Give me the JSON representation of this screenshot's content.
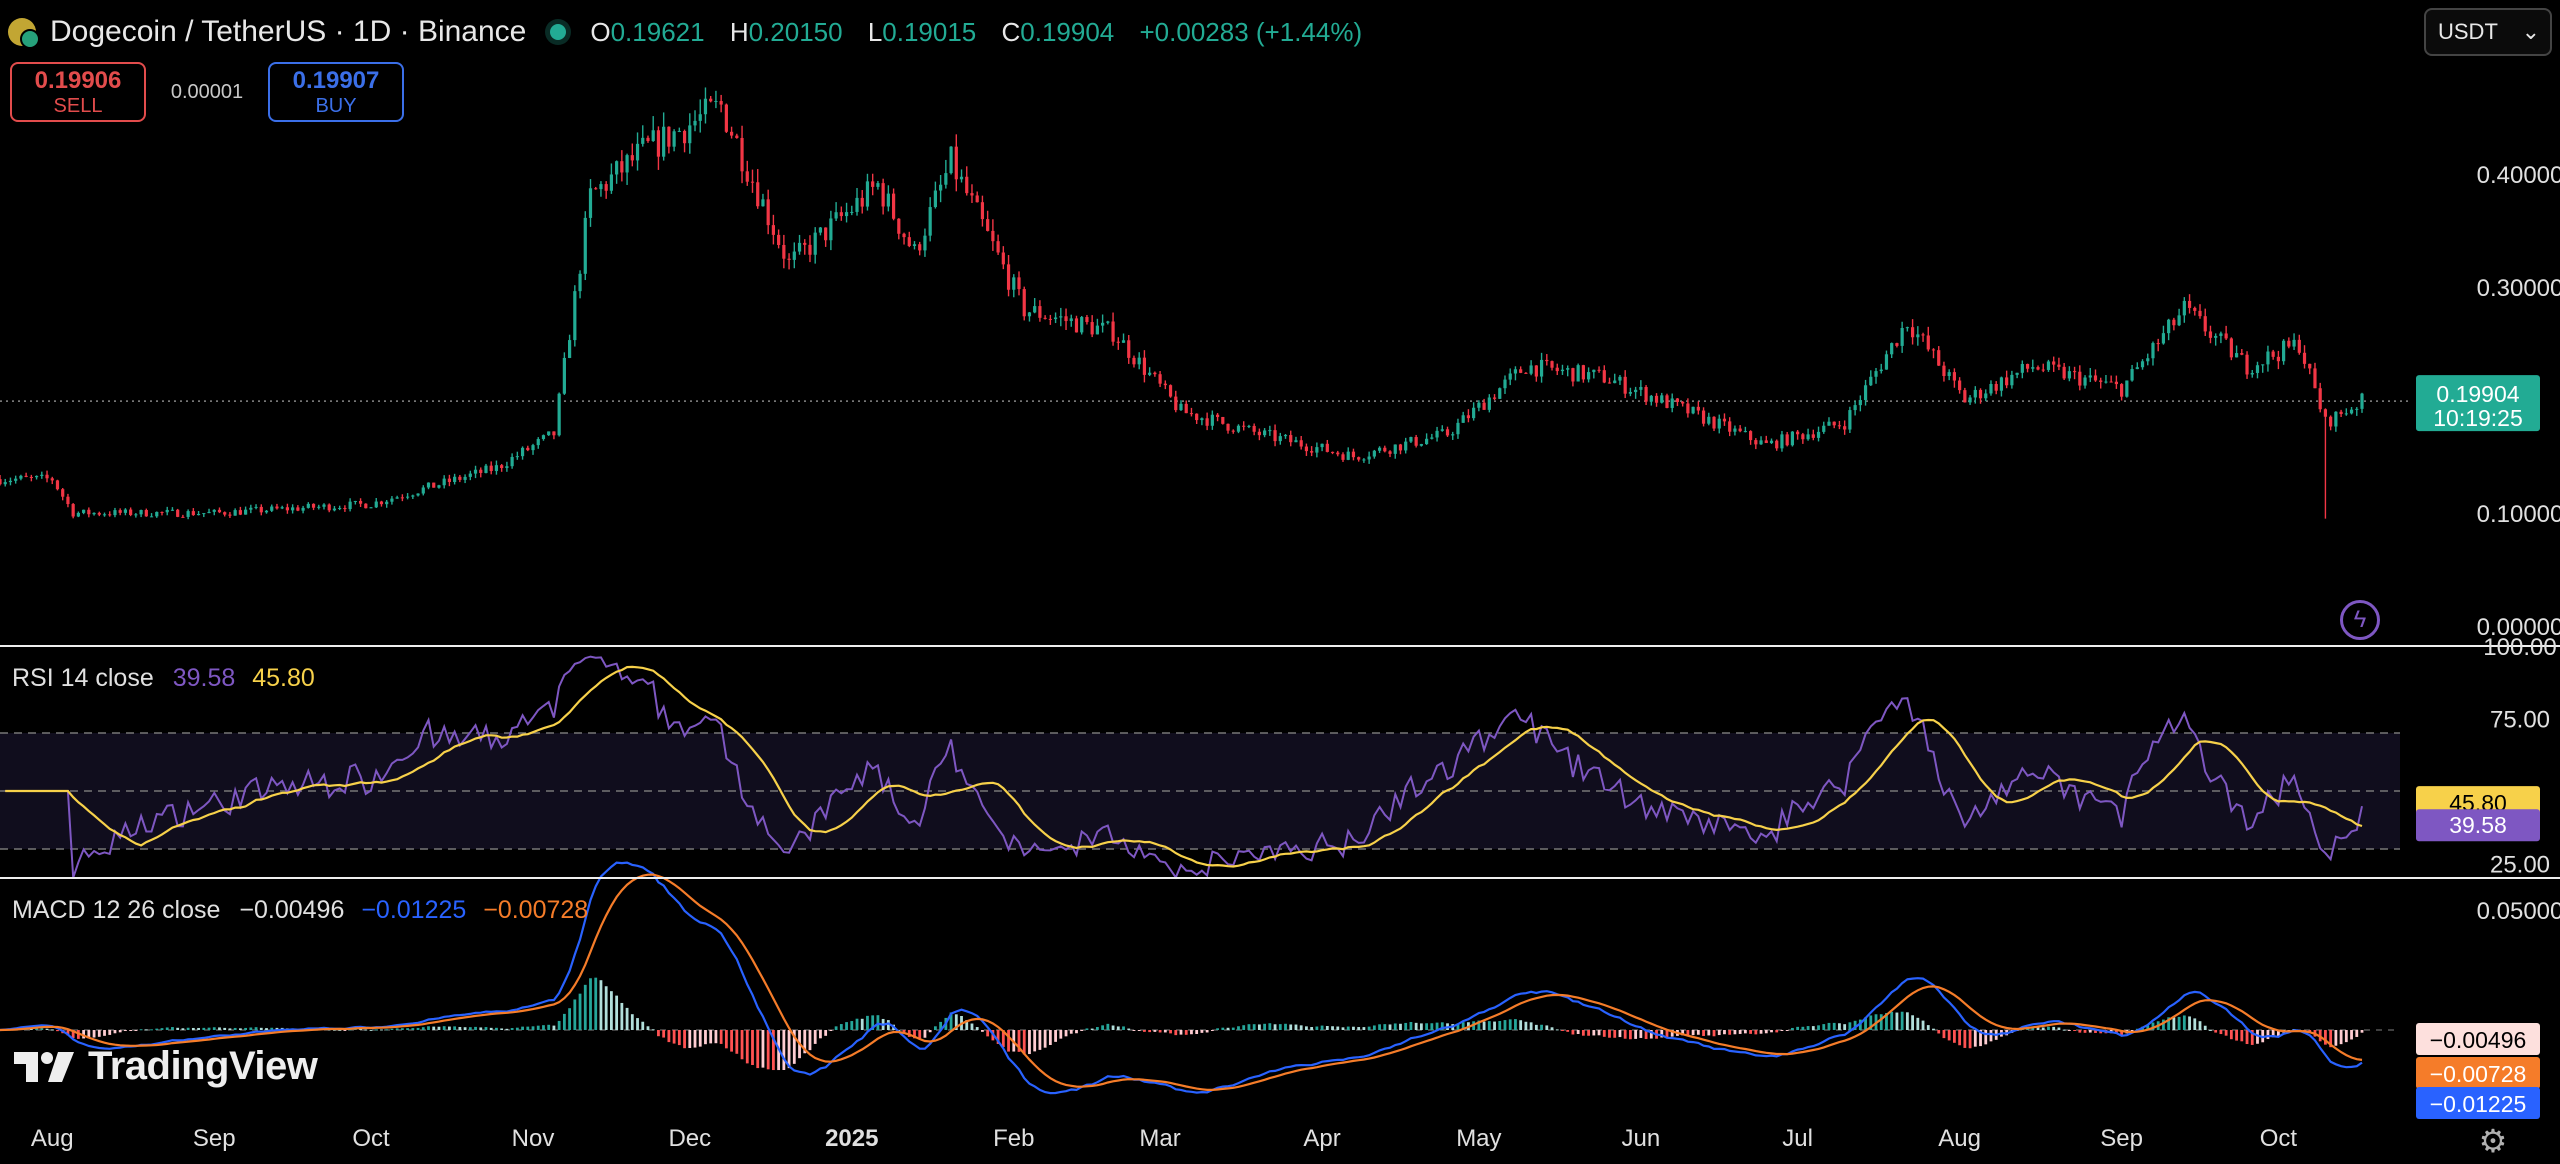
{
  "header": {
    "symbol": "Dogecoin / TetherUS · 1D · Binance",
    "open_label": "O",
    "open": "0.19621",
    "high_label": "H",
    "high": "0.20150",
    "low_label": "L",
    "low": "0.19015",
    "close_label": "C",
    "close": "0.19904",
    "change": "+0.00283 (+1.44%)"
  },
  "trade": {
    "sell_price": "0.19906",
    "sell_label": "SELL",
    "spread": "0.00001",
    "buy_price": "0.19907",
    "buy_label": "BUY"
  },
  "currency": {
    "label": "USDT",
    "chevron_icon": "chevron-down-icon"
  },
  "rsi_legend": {
    "name": "RSI 14 close",
    "rsi": "39.58",
    "ma": "45.80"
  },
  "macd_legend": {
    "name": "MACD 12 26 close",
    "hist": "−0.00496",
    "macd": "−0.01225",
    "signal": "−0.00728"
  },
  "brand": {
    "name": "TradingView",
    "logo_icon": "tradingview-logo-icon"
  },
  "icons": {
    "bolt": "lightning-bolt-icon",
    "settings": "gear-icon"
  },
  "colors": {
    "up": "#22ab94",
    "down": "#f23645",
    "rsi": "#7e57c2",
    "rsi_ma": "#f7d14a",
    "macd": "#2962ff",
    "signal": "#f57c29",
    "price_tag": "#22ab94"
  },
  "chart_data": [
    {
      "type": "candlestick",
      "title": "Dogecoin / TetherUS · 1D · Binance",
      "x_labels": [
        "Aug",
        "Sep",
        "Oct",
        "Nov",
        "Dec",
        "2025",
        "Feb",
        "Mar",
        "Apr",
        "May",
        "Jun",
        "Jul",
        "Aug",
        "Sep",
        "Oct"
      ],
      "y_ticks": [
        "0.00000",
        "0.10000",
        "0.30000",
        "0.40000"
      ],
      "y_tick_values": [
        0.0,
        0.1,
        0.3,
        0.4
      ],
      "ylim": [
        0.0,
        0.5
      ],
      "last_price": "0.19904",
      "countdown": "10:19:25",
      "trend_points": [
        {
          "date": "2024-08-01",
          "close": 0.13
        },
        {
          "date": "2024-08-05",
          "close": 0.1
        },
        {
          "date": "2024-09-01",
          "close": 0.1
        },
        {
          "date": "2024-10-01",
          "close": 0.108
        },
        {
          "date": "2024-10-25",
          "close": 0.14
        },
        {
          "date": "2024-11-05",
          "close": 0.17
        },
        {
          "date": "2024-11-12",
          "close": 0.38
        },
        {
          "date": "2024-11-22",
          "close": 0.42
        },
        {
          "date": "2024-12-07",
          "close": 0.46
        },
        {
          "date": "2024-12-20",
          "close": 0.32
        },
        {
          "date": "2025-01-06",
          "close": 0.39
        },
        {
          "date": "2025-01-13",
          "close": 0.33
        },
        {
          "date": "2025-01-20",
          "close": 0.41
        },
        {
          "date": "2025-02-03",
          "close": 0.28
        },
        {
          "date": "2025-02-20",
          "close": 0.26
        },
        {
          "date": "2025-03-05",
          "close": 0.19
        },
        {
          "date": "2025-03-20",
          "close": 0.17
        },
        {
          "date": "2025-04-07",
          "close": 0.15
        },
        {
          "date": "2025-04-25",
          "close": 0.17
        },
        {
          "date": "2025-05-10",
          "close": 0.23
        },
        {
          "date": "2025-05-25",
          "close": 0.22
        },
        {
          "date": "2025-06-10",
          "close": 0.19
        },
        {
          "date": "2025-06-25",
          "close": 0.16
        },
        {
          "date": "2025-07-10",
          "close": 0.18
        },
        {
          "date": "2025-07-22",
          "close": 0.27
        },
        {
          "date": "2025-08-02",
          "close": 0.2
        },
        {
          "date": "2025-08-15",
          "close": 0.23
        },
        {
          "date": "2025-09-01",
          "close": 0.21
        },
        {
          "date": "2025-09-13",
          "close": 0.28
        },
        {
          "date": "2025-09-25",
          "close": 0.23
        },
        {
          "date": "2025-10-05",
          "close": 0.25
        },
        {
          "date": "2025-10-10",
          "close": 0.18
        },
        {
          "date": "2025-10-17",
          "close": 0.199
        }
      ]
    },
    {
      "type": "line",
      "title": "RSI 14 close",
      "y_ticks": [
        "25.00",
        "75.00",
        "100.00"
      ],
      "y_tick_values": [
        25,
        75,
        100
      ],
      "bands": [
        30,
        50,
        70
      ],
      "ylim": [
        20,
        100
      ],
      "series": [
        {
          "name": "RSI",
          "color": "#7e57c2",
          "last": "39.58"
        },
        {
          "name": "MA",
          "color": "#f7d14a",
          "last": "45.80"
        }
      ]
    },
    {
      "type": "line",
      "title": "MACD 12 26 close",
      "y_ticks": [
        "0.05000"
      ],
      "y_tick_values": [
        0.05
      ],
      "series": [
        {
          "name": "Histogram",
          "last": "−0.00496"
        },
        {
          "name": "MACD",
          "color": "#2962ff",
          "last": "−0.01225"
        },
        {
          "name": "Signal",
          "color": "#f57c29",
          "last": "−0.00728"
        }
      ]
    }
  ]
}
